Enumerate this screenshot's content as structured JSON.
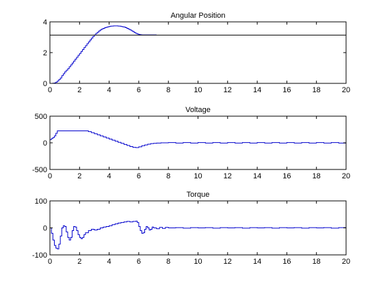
{
  "chart_data": [
    {
      "type": "line",
      "title": "Angular Position",
      "xlabel": "",
      "ylabel": "",
      "xlim": [
        0,
        20
      ],
      "ylim": [
        0,
        4
      ],
      "xticks": [
        "0",
        "2",
        "4",
        "6",
        "8",
        "10",
        "12",
        "14",
        "16",
        "18",
        "20"
      ],
      "yticks": [
        "0",
        "2",
        "4"
      ],
      "grid": false,
      "series": [
        {
          "color": "#0000cc",
          "style": "stairs",
          "x": [
            0,
            0.1,
            0.2,
            0.3,
            0.4,
            0.5,
            0.6,
            0.7,
            0.8,
            0.9,
            1.0,
            1.1,
            1.2,
            1.3,
            1.4,
            1.5,
            1.6,
            1.7,
            1.8,
            1.9,
            2.0,
            2.1,
            2.2,
            2.3,
            2.4,
            2.5,
            2.6,
            2.7,
            2.8,
            2.9,
            3.0,
            3.1,
            3.2,
            3.3,
            3.4,
            3.5,
            3.6,
            3.7,
            3.8,
            3.9,
            4.0,
            4.1,
            4.2,
            4.3,
            4.4,
            4.5,
            4.6,
            4.7,
            4.8,
            4.9,
            5.0,
            5.1,
            5.2,
            5.3,
            5.4,
            5.5,
            5.6,
            5.7,
            5.8,
            5.9,
            6.0,
            6.1,
            6.2,
            6.3,
            6.4,
            6.5,
            6.6,
            6.7,
            6.8,
            6.9,
            7.0,
            7.1,
            7.2
          ],
          "y": [
            0,
            0,
            0.01,
            0.03,
            0.08,
            0.15,
            0.25,
            0.35,
            0.5,
            0.62,
            0.75,
            0.85,
            0.95,
            1.08,
            1.2,
            1.32,
            1.45,
            1.58,
            1.7,
            1.83,
            1.95,
            2.08,
            2.2,
            2.33,
            2.45,
            2.58,
            2.7,
            2.82,
            2.94,
            3.05,
            3.15,
            3.25,
            3.33,
            3.41,
            3.48,
            3.54,
            3.58,
            3.62,
            3.65,
            3.68,
            3.7,
            3.72,
            3.73,
            3.74,
            3.74,
            3.74,
            3.73,
            3.72,
            3.7,
            3.68,
            3.66,
            3.62,
            3.58,
            3.53,
            3.48,
            3.42,
            3.36,
            3.3,
            3.25,
            3.21,
            3.18,
            3.16,
            3.15,
            3.15,
            3.15,
            3.15,
            3.15,
            3.15,
            3.15,
            3.15,
            3.15,
            3.15,
            3.15
          ]
        },
        {
          "color": "#000000",
          "style": "line",
          "x": [
            0,
            20
          ],
          "y": [
            3.14,
            3.14
          ]
        }
      ]
    },
    {
      "type": "line",
      "title": "Voltage",
      "xlabel": "",
      "ylabel": "",
      "xlim": [
        0,
        20
      ],
      "ylim": [
        -500,
        500
      ],
      "xticks": [
        "0",
        "2",
        "4",
        "6",
        "8",
        "10",
        "12",
        "14",
        "16",
        "18",
        "20"
      ],
      "yticks": [
        "-500",
        "0",
        "500"
      ],
      "grid": false,
      "series": [
        {
          "color": "#0000cc",
          "style": "stairs",
          "x": [
            0,
            0.1,
            0.2,
            0.3,
            0.4,
            0.5,
            1.0,
            1.5,
            2.0,
            2.5,
            2.6,
            2.8,
            3.0,
            3.2,
            3.4,
            3.6,
            3.8,
            4.0,
            4.2,
            4.4,
            4.6,
            4.8,
            5.0,
            5.2,
            5.4,
            5.6,
            5.8,
            6.0,
            6.2,
            6.4,
            6.6,
            6.8,
            7.0,
            7.2,
            7.5,
            8,
            8.5,
            9,
            9.5,
            10,
            10.5,
            11,
            11.5,
            12,
            12.5,
            13,
            13.5,
            14,
            14.5,
            15,
            15.5,
            16,
            16.5,
            17,
            17.5,
            18,
            18.5,
            19,
            19.5,
            20
          ],
          "y": [
            60,
            80,
            100,
            130,
            180,
            225,
            225,
            225,
            225,
            225,
            210,
            190,
            170,
            150,
            130,
            110,
            90,
            70,
            50,
            30,
            10,
            -10,
            -30,
            -50,
            -70,
            -85,
            -90,
            -75,
            -55,
            -40,
            -25,
            -15,
            -10,
            -5,
            0,
            5,
            -5,
            5,
            -5,
            5,
            -5,
            5,
            -5,
            5,
            -5,
            5,
            -5,
            5,
            -5,
            5,
            -5,
            5,
            -5,
            5,
            -5,
            5,
            -5,
            5,
            -5,
            0
          ]
        }
      ]
    },
    {
      "type": "line",
      "title": "Torque",
      "xlabel": "",
      "ylabel": "",
      "xlim": [
        0,
        20
      ],
      "ylim": [
        -100,
        100
      ],
      "xticks": [
        "0",
        "2",
        "4",
        "6",
        "8",
        "10",
        "12",
        "14",
        "16",
        "18",
        "20"
      ],
      "yticks": [
        "-100",
        "0",
        "100"
      ],
      "grid": false,
      "series": [
        {
          "color": "#0000cc",
          "style": "stairs",
          "x": [
            0,
            0.1,
            0.2,
            0.3,
            0.4,
            0.5,
            0.6,
            0.7,
            0.8,
            0.9,
            1.0,
            1.1,
            1.2,
            1.3,
            1.4,
            1.5,
            1.6,
            1.7,
            1.8,
            1.9,
            2.0,
            2.1,
            2.2,
            2.3,
            2.4,
            2.6,
            2.8,
            3.0,
            3.2,
            3.4,
            3.6,
            3.8,
            4.0,
            4.2,
            4.4,
            4.6,
            4.8,
            5.0,
            5.2,
            5.4,
            5.6,
            5.8,
            5.9,
            6.0,
            6.1,
            6.2,
            6.3,
            6.4,
            6.5,
            6.6,
            6.7,
            6.8,
            6.9,
            7.0,
            7.2,
            7.4,
            7.6,
            7.8,
            8,
            8.5,
            9,
            9.5,
            10,
            10.5,
            11,
            11.5,
            12,
            12.5,
            13,
            13.5,
            14,
            14.5,
            15,
            15.5,
            16,
            16.5,
            17,
            17.5,
            18,
            18.5,
            19,
            19.5,
            20
          ],
          "y": [
            0,
            -20,
            -45,
            -65,
            -75,
            -78,
            -60,
            -30,
            0,
            8,
            5,
            -15,
            -35,
            -45,
            -35,
            -10,
            5,
            3,
            -10,
            -25,
            -35,
            -40,
            -35,
            -25,
            -18,
            -10,
            -5,
            -8,
            -5,
            0,
            3,
            5,
            8,
            12,
            15,
            18,
            20,
            22,
            24,
            22,
            24,
            25,
            20,
            5,
            -10,
            -20,
            -18,
            -5,
            5,
            0,
            -8,
            -5,
            3,
            0,
            -3,
            2,
            -2,
            2,
            0,
            1,
            -1,
            1,
            0,
            1,
            -1,
            1,
            0,
            1,
            -1,
            1,
            0,
            1,
            -1,
            1,
            0,
            1,
            -1,
            1,
            0,
            1,
            -1,
            1,
            0
          ]
        }
      ]
    }
  ]
}
